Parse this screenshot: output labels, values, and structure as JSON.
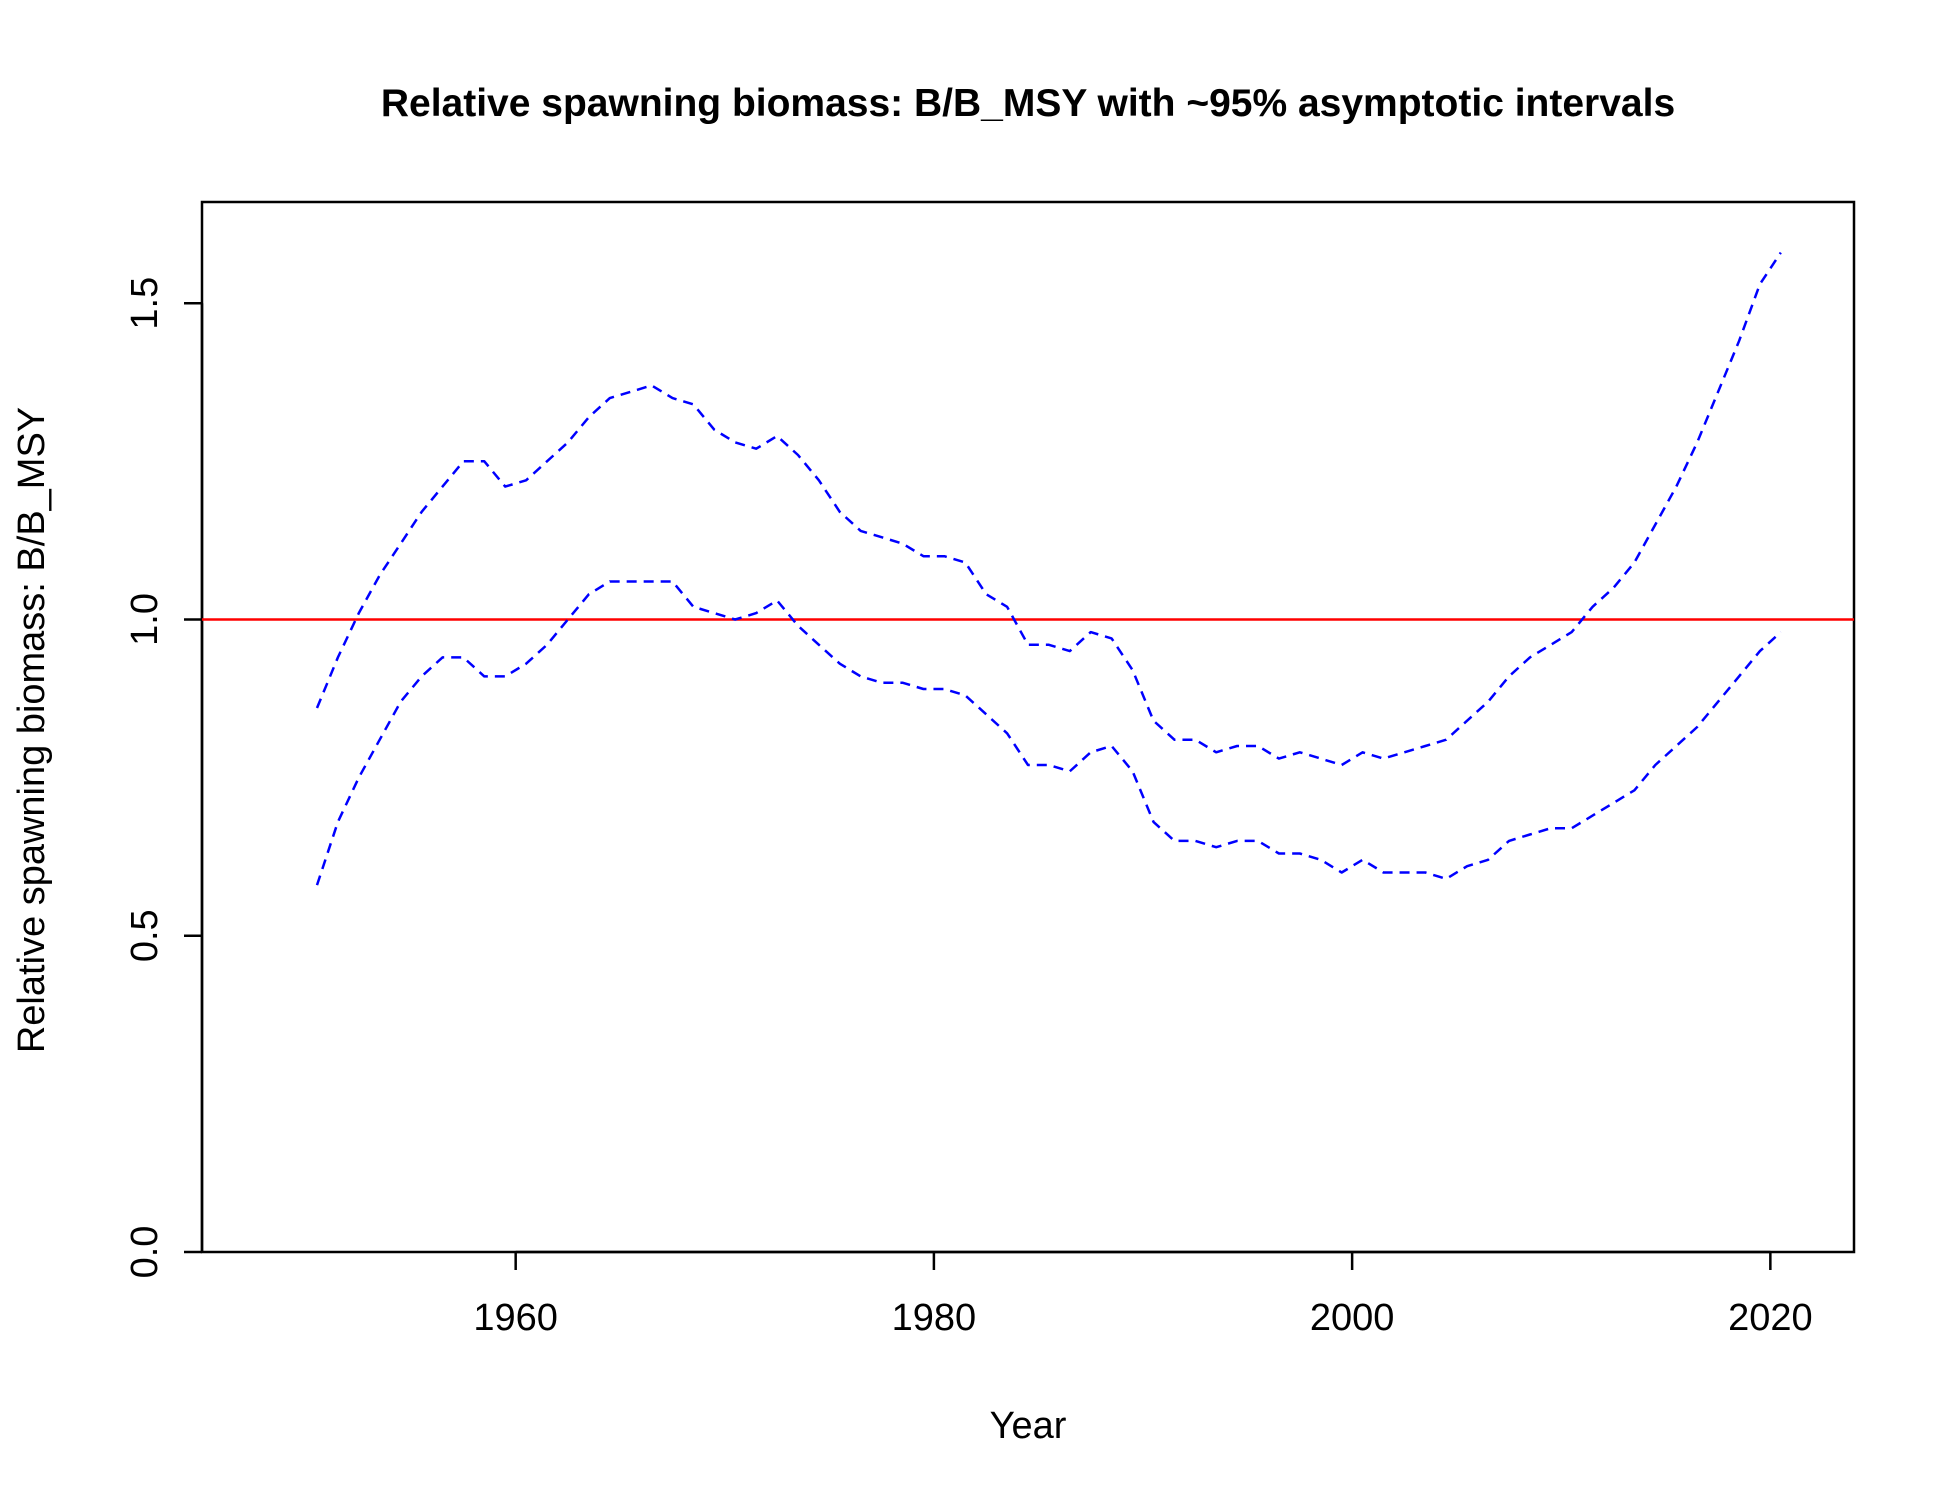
{
  "chart_data": {
    "type": "line",
    "title": "Relative spawning biomass: B/B_MSY with ~95% asymptotic intervals",
    "xlabel": "Year",
    "ylabel": "Relative spawning biomass: B/B_MSY",
    "xlim": [
      1945,
      2024
    ],
    "ylim": [
      0,
      1.66
    ],
    "x_ticks": [
      1960,
      1980,
      2000,
      2020
    ],
    "x_tick_labels": [
      "1960",
      "1980",
      "2000",
      "2020"
    ],
    "y_ticks": [
      0,
      0.5,
      1,
      1.5
    ],
    "y_tick_labels": [
      "0.0",
      "0.5",
      "1.0",
      "1.5"
    ],
    "reference_line": {
      "y": 1.0,
      "color": "#ff0000",
      "style": "solid"
    },
    "x": [
      1950.5,
      1951.5,
      1952.5,
      1953.5,
      1954.5,
      1955.5,
      1956.5,
      1957.5,
      1958.5,
      1959.5,
      1960.5,
      1961.5,
      1962.5,
      1963.5,
      1964.5,
      1965.5,
      1966.5,
      1967.5,
      1968.5,
      1969.5,
      1970.5,
      1971.5,
      1972.5,
      1973.5,
      1974.5,
      1975.5,
      1976.5,
      1977.5,
      1978.5,
      1979.5,
      1980.5,
      1981.5,
      1982.5,
      1983.5,
      1984.5,
      1985.5,
      1986.5,
      1987.5,
      1988.5,
      1989.5,
      1990.5,
      1991.5,
      1992.5,
      1993.5,
      1994.5,
      1995.5,
      1996.5,
      1997.5,
      1998.5,
      1999.5,
      2000.5,
      2001.5,
      2002.5,
      2003.5,
      2004.5,
      2005.5,
      2006.5,
      2007.5,
      2008.5,
      2009.5,
      2010.5,
      2011.5,
      2012.5,
      2013.5,
      2014.5,
      2015.5,
      2016.5,
      2017.5,
      2018.5,
      2019.5,
      2020.5
    ],
    "series": [
      {
        "name": "Upper ~95% interval",
        "color": "#0000ff",
        "style": "dashed",
        "values": [
          0.86,
          0.94,
          1.01,
          1.07,
          1.12,
          1.17,
          1.21,
          1.25,
          1.25,
          1.21,
          1.22,
          1.25,
          1.28,
          1.32,
          1.35,
          1.36,
          1.37,
          1.35,
          1.34,
          1.3,
          1.28,
          1.27,
          1.29,
          1.26,
          1.22,
          1.17,
          1.14,
          1.13,
          1.12,
          1.1,
          1.1,
          1.09,
          1.04,
          1.02,
          0.96,
          0.96,
          0.95,
          0.98,
          0.97,
          0.92,
          0.84,
          0.81,
          0.81,
          0.79,
          0.8,
          0.8,
          0.78,
          0.79,
          0.78,
          0.77,
          0.79,
          0.78,
          0.79,
          0.8,
          0.81,
          0.84,
          0.87,
          0.91,
          0.94,
          0.96,
          0.98,
          1.02,
          1.05,
          1.09,
          1.15,
          1.21,
          1.28,
          1.36,
          1.44,
          1.53,
          1.58
        ]
      },
      {
        "name": "Lower ~95% interval",
        "color": "#0000ff",
        "style": "dashed",
        "values": [
          0.58,
          0.68,
          0.75,
          0.81,
          0.87,
          0.91,
          0.94,
          0.94,
          0.91,
          0.91,
          0.93,
          0.96,
          1.0,
          1.04,
          1.06,
          1.06,
          1.06,
          1.06,
          1.02,
          1.01,
          1.0,
          1.01,
          1.03,
          0.99,
          0.96,
          0.93,
          0.91,
          0.9,
          0.9,
          0.89,
          0.89,
          0.88,
          0.85,
          0.82,
          0.77,
          0.77,
          0.76,
          0.79,
          0.8,
          0.76,
          0.68,
          0.65,
          0.65,
          0.64,
          0.65,
          0.65,
          0.63,
          0.63,
          0.62,
          0.6,
          0.62,
          0.6,
          0.6,
          0.6,
          0.59,
          0.61,
          0.62,
          0.65,
          0.66,
          0.67,
          0.67,
          0.69,
          0.71,
          0.73,
          0.77,
          0.8,
          0.83,
          0.87,
          0.91,
          0.95,
          0.98
        ]
      }
    ],
    "grid": false,
    "legend": "none"
  }
}
